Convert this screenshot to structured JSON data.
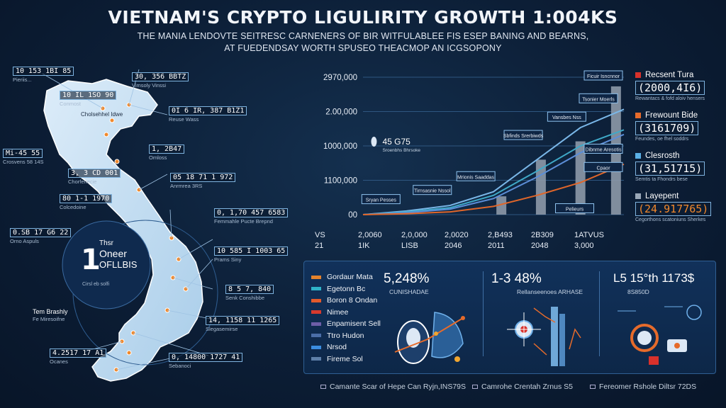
{
  "title": "VIETNAM'S CRYPTO LIGULIRITY GROWTH 1:004KS",
  "subtitle_line1": "THE MANIA LENDOVTE SEITRESC CARNENERS OF BIR WITFULABLEE FIS ESEP BANING AND BEARNS,",
  "subtitle_line2": "AT FUEDENDSAY WORTH SPUSEO THEACMOP AN ICGSOPONY",
  "map": {
    "labels": [
      {
        "value": "10 153 1BI 85",
        "caption": "Pieriis..."
      },
      {
        "value": "30, 356 BBTZ",
        "caption": "Vimsoly Vinssi"
      },
      {
        "value": "10 IL 1SO 90",
        "caption": "Conmost"
      },
      {
        "value": "Cholsehhel Idwe",
        "caption": ""
      },
      {
        "value": "0I 6 IR, 387 B1Z1",
        "caption": "Reuse Wass"
      },
      {
        "value": "Mi-45 55",
        "caption": "Crosvens 58 14S"
      },
      {
        "value": "1, 2B47",
        "caption": "Omloss"
      },
      {
        "value": "3, 3 CD 001",
        "caption": "Chorfenecie"
      },
      {
        "value": "05 18 71 1 972",
        "caption": "Anrmrea 3RS"
      },
      {
        "value": "80 1-1 1970",
        "caption": "Colcedoine"
      },
      {
        "value": "0, 1,70 457 6583",
        "caption": "Femmahle Pucte Brepnd"
      },
      {
        "value": "0.SB 17 G6 22",
        "caption": "Orno Aspuls"
      },
      {
        "value": "10 585 I 1003 65",
        "caption": "Prams Siny"
      },
      {
        "value": "8 5 7, 840",
        "caption": "Senk Conshibbe"
      },
      {
        "value": "14, 1158 11 1265",
        "caption": "Slegasemirse"
      },
      {
        "value": "Tem Brashly",
        "caption": "Fe Miresoifne"
      },
      {
        "value": "4.2517 17 A1",
        "caption": "Ocanes"
      },
      {
        "value": "0, 14800 1727 41",
        "caption": "Sebanoci"
      }
    ],
    "circle_number": "1",
    "circle_text": [
      "Thsr",
      "Oneer",
      "OFLLBIS"
    ],
    "circle_caption": "Cirsl eb solfi"
  },
  "chart_data": {
    "type": "line",
    "y_ticks": [
      "2970,000",
      "2.00,000",
      "1000,000",
      "1100,000",
      "00"
    ],
    "x_ticks": [
      [
        "VS",
        "21"
      ],
      [
        "2,0060",
        "1IK"
      ],
      [
        "2,0,000",
        "LISB"
      ],
      [
        "2,0020",
        "2046"
      ],
      [
        "2,B493",
        "2011"
      ],
      [
        "2B309",
        "2048"
      ],
      [
        "1ATVUS",
        "3,000"
      ]
    ],
    "ylim": [
      0,
      3000000
    ],
    "bars": [
      {
        "x": 3.5,
        "value": 400000
      },
      {
        "x": 4.5,
        "value": 1200000
      },
      {
        "x": 5.5,
        "value": 1600000
      },
      {
        "x": 6.4,
        "value": 2800000
      }
    ],
    "series": [
      {
        "color": "#7ab7e8",
        "values": [
          0,
          80000,
          200000,
          500000,
          1200000,
          1900000,
          2300000
        ]
      },
      {
        "color": "#3fa9c8",
        "values": [
          0,
          60000,
          150000,
          420000,
          950000,
          1500000,
          1850000
        ]
      },
      {
        "color": "#5c8ed8",
        "values": [
          0,
          40000,
          120000,
          350000,
          820000,
          1350000,
          1750000
        ]
      },
      {
        "color": "#e0662a",
        "values": [
          0,
          20000,
          60000,
          180000,
          420000,
          700000,
          1100000
        ]
      }
    ],
    "annotations": [
      {
        "label": "Sryan Pesses",
        "x": 0.4,
        "y": 300000
      },
      {
        "label": "Tirnsasnie Nssol",
        "x": 1.7,
        "y": 500000
      },
      {
        "label": "Mrionis Saaddas",
        "x": 2.8,
        "y": 800000
      },
      {
        "label": "Sbfinds Srerbiwds",
        "x": 4.0,
        "y": 1700000
      },
      {
        "label": "Vansbes Nss",
        "x": 5.1,
        "y": 2100000
      },
      {
        "label": "Tsonier Moerls",
        "x": 5.9,
        "y": 2500000
      },
      {
        "label": "Ficuir Isncnnor",
        "x": 6.3,
        "y": 3000000
      },
      {
        "label": "Dibnme Aresotis",
        "x": 6.6,
        "y": 1400000
      },
      {
        "label": "Cpaor",
        "x": 6.6,
        "y": 1000000
      },
      {
        "label": "Pelieurs",
        "x": 5.3,
        "y": 100000
      }
    ],
    "callout": {
      "value": "45 G75",
      "caption": "Sroenbhs Bhrsoke"
    }
  },
  "legend": [
    {
      "name": "Recsent Tura",
      "value": "(2000,4I6)",
      "caption": "Rewantacs & fofd aloiv hensers",
      "color": "#d8312b"
    },
    {
      "name": "Frewount Bide",
      "value": "(3161709)",
      "caption": "Feundes, oe fhel soddrs",
      "color": "#e66b2b"
    },
    {
      "name": "Clesrosth",
      "value": "(31,51715)",
      "caption": "Semtis ta Fhondrs bese",
      "color": "#5ab0e6"
    },
    {
      "name": "Layepent",
      "value": "(24.917765)",
      "caption": "Cegorthons scatoniuns Sherkes",
      "color": "#9aa8b8"
    }
  ],
  "panel": {
    "categories": [
      {
        "label": "Gordaur Mata",
        "color": "#e4832c"
      },
      {
        "label": "Egetonn Bc",
        "color": "#2fb3c8"
      },
      {
        "label": "Boron 8 Ondan",
        "color": "#e25a2b"
      },
      {
        "label": "Nimee",
        "color": "#d73a2d"
      },
      {
        "label": "Enpamisent Sell",
        "color": "#6d5ea8"
      },
      {
        "label": "Ttro Hudon",
        "color": "#4a6ea8"
      },
      {
        "label": "Nrsod",
        "color": "#3b8de0"
      },
      {
        "label": "Fireme Sol",
        "color": "#5d7fa8"
      }
    ],
    "stats": [
      {
        "value": "5,248%",
        "caption": "CUNISHADAE"
      },
      {
        "value": "1-3 48%",
        "caption": "Rellanseenoes ARHASE"
      },
      {
        "value": "L5 15°th 1173$",
        "caption": "8S850D"
      }
    ]
  },
  "footer": [
    "Camante Scar of Hepe Can Ryjn,INS79S",
    "Camrohe Crentah Zrnus S5",
    "Fereomer Rshole Diltsr 72DS"
  ]
}
